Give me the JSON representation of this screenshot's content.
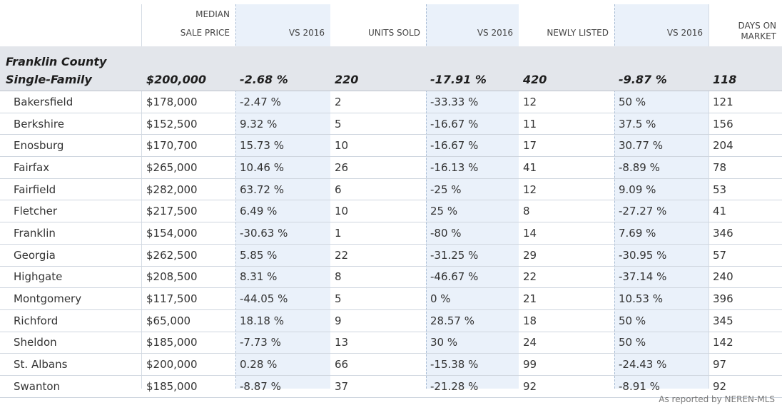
{
  "headers": {
    "median_l1": "MEDIAN",
    "median_l2": "SALE PRICE",
    "vs1": "VS 2016",
    "units": "UNITS SOLD",
    "vs2": "VS 2016",
    "newly": "NEWLY LISTED",
    "vs3": "VS 2016",
    "days_l1": "DAYS ON",
    "days_l2": "MARKET"
  },
  "summary": {
    "name_line1": "Franklin County",
    "name_line2": "Single-Family",
    "price": "$200,000",
    "price_vs": "-2.68 %",
    "units": "220",
    "units_vs": "-17.91 %",
    "listed": "420",
    "listed_vs": "-9.87 %",
    "days": "118"
  },
  "rows": [
    {
      "town": "Bakersfield",
      "price": "$178,000",
      "price_vs": "-2.47 %",
      "units": "2",
      "units_vs": "-33.33 %",
      "listed": "12",
      "listed_vs": "50 %",
      "days": "121"
    },
    {
      "town": "Berkshire",
      "price": "$152,500",
      "price_vs": "9.32 %",
      "units": "5",
      "units_vs": "-16.67 %",
      "listed": "11",
      "listed_vs": "37.5 %",
      "days": "156"
    },
    {
      "town": "Enosburg",
      "price": "$170,700",
      "price_vs": "15.73 %",
      "units": "10",
      "units_vs": "-16.67 %",
      "listed": "17",
      "listed_vs": "30.77 %",
      "days": "204"
    },
    {
      "town": "Fairfax",
      "price": "$265,000",
      "price_vs": "10.46 %",
      "units": "26",
      "units_vs": "-16.13 %",
      "listed": "41",
      "listed_vs": "-8.89 %",
      "days": "78"
    },
    {
      "town": "Fairfield",
      "price": "$282,000",
      "price_vs": "63.72 %",
      "units": "6",
      "units_vs": "-25 %",
      "listed": "12",
      "listed_vs": "9.09 %",
      "days": "53"
    },
    {
      "town": "Fletcher",
      "price": "$217,500",
      "price_vs": "6.49 %",
      "units": "10",
      "units_vs": "25 %",
      "listed": "8",
      "listed_vs": "-27.27 %",
      "days": "41"
    },
    {
      "town": "Franklin",
      "price": "$154,000",
      "price_vs": "-30.63 %",
      "units": "1",
      "units_vs": "-80 %",
      "listed": "14",
      "listed_vs": "7.69 %",
      "days": "346"
    },
    {
      "town": "Georgia",
      "price": "$262,500",
      "price_vs": "5.85 %",
      "units": "22",
      "units_vs": "-31.25 %",
      "listed": "29",
      "listed_vs": "-30.95 %",
      "days": "57"
    },
    {
      "town": "Highgate",
      "price": "$208,500",
      "price_vs": "8.31 %",
      "units": "8",
      "units_vs": "-46.67 %",
      "listed": "22",
      "listed_vs": "-37.14 %",
      "days": "240"
    },
    {
      "town": "Montgomery",
      "price": "$117,500",
      "price_vs": "-44.05 %",
      "units": "5",
      "units_vs": "0 %",
      "listed": "21",
      "listed_vs": "10.53 %",
      "days": "396"
    },
    {
      "town": "Richford",
      "price": "$65,000",
      "price_vs": "18.18 %",
      "units": "9",
      "units_vs": "28.57 %",
      "listed": "18",
      "listed_vs": "50 %",
      "days": "345"
    },
    {
      "town": "Sheldon",
      "price": "$185,000",
      "price_vs": "-7.73 %",
      "units": "13",
      "units_vs": "30 %",
      "listed": "24",
      "listed_vs": "50 %",
      "days": "142"
    },
    {
      "town": "St. Albans",
      "price": "$200,000",
      "price_vs": "0.28 %",
      "units": "66",
      "units_vs": "-15.38 %",
      "listed": "99",
      "listed_vs": "-24.43 %",
      "days": "97"
    },
    {
      "town": "Swanton",
      "price": "$185,000",
      "price_vs": "-8.87 %",
      "units": "37",
      "units_vs": "-21.28 %",
      "listed": "92",
      "listed_vs": "-8.91 %",
      "days": "92"
    }
  ],
  "footer": "As reported by NEREN-MLS"
}
